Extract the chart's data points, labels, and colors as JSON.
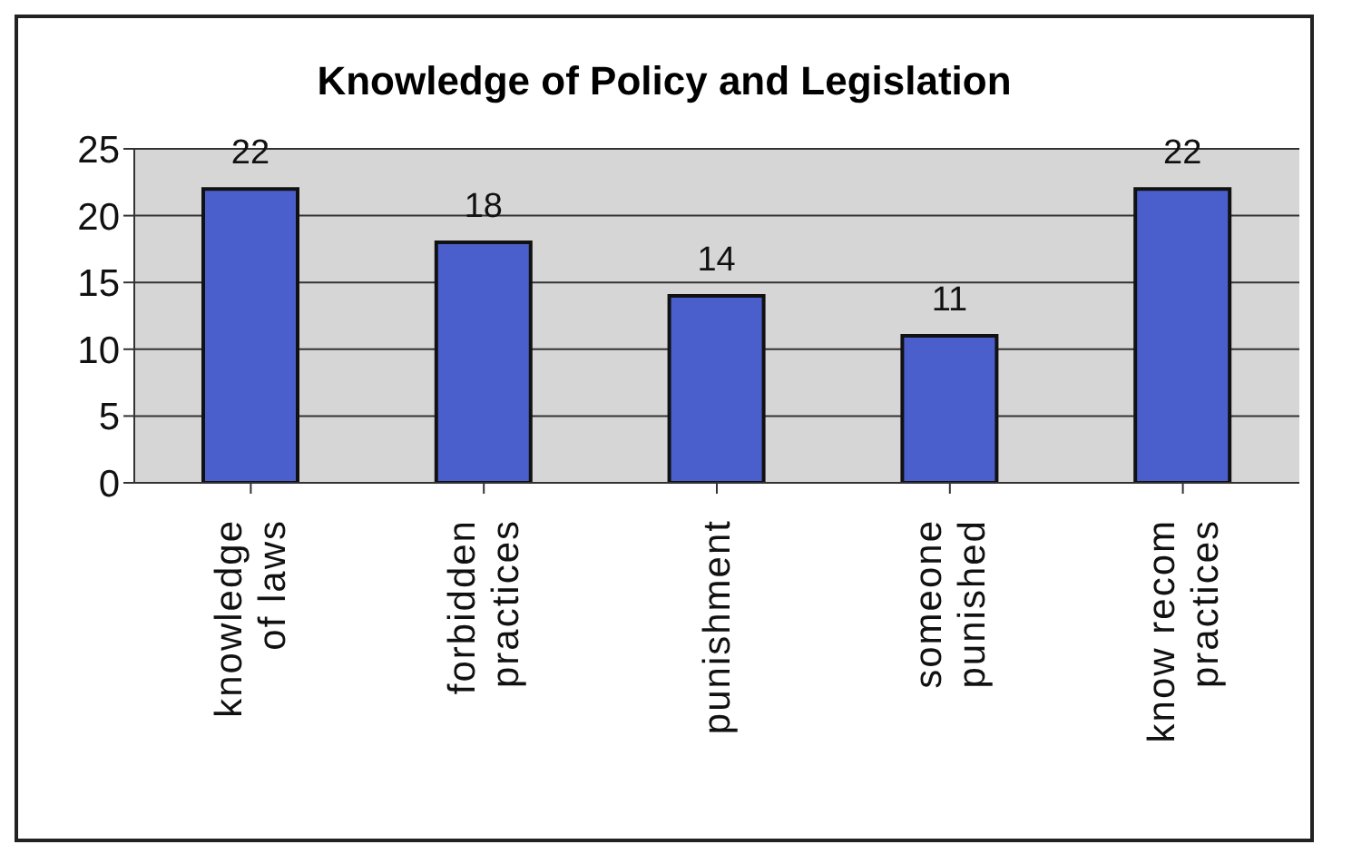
{
  "chart_data": {
    "type": "bar",
    "title": "Knowledge of Policy and Legislation",
    "categories": [
      "knowledge of laws",
      "forbidden practices",
      "punishment",
      "someone punished",
      "know recom practices"
    ],
    "values": [
      22,
      18,
      14,
      11,
      22
    ],
    "color": "#4a5fcc",
    "ylim": [
      0,
      25
    ],
    "yticks": [
      0,
      5,
      10,
      15,
      20,
      25
    ],
    "grid": "y",
    "data_labels": true
  }
}
